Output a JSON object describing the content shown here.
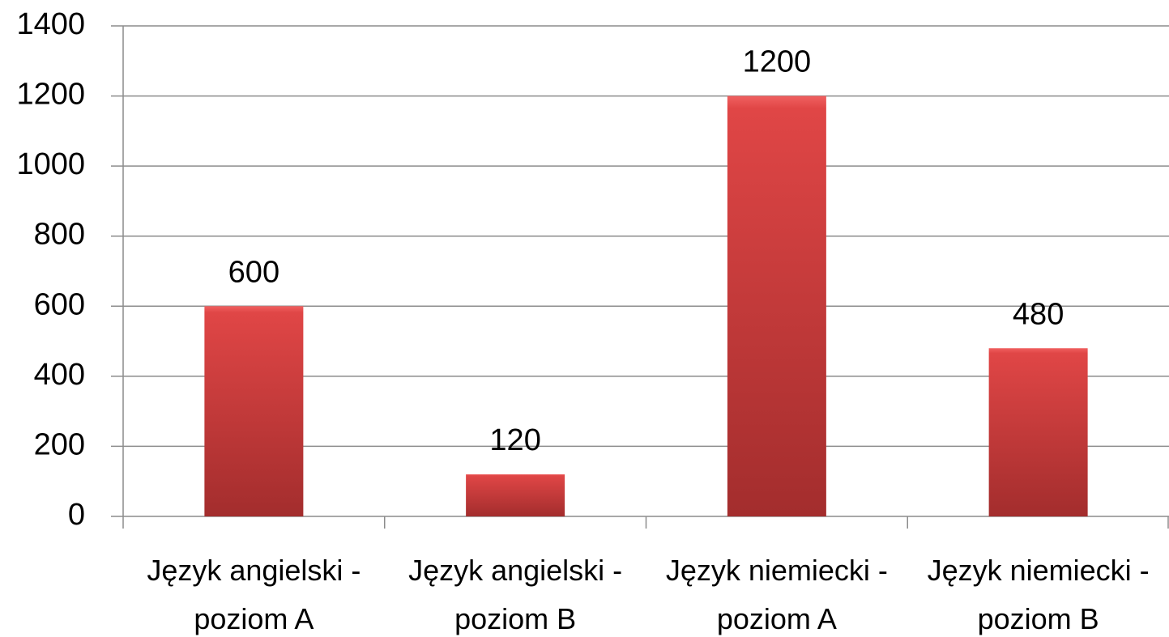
{
  "chart_data": {
    "type": "bar",
    "categories": [
      "Język angielski - poziom A",
      "Język angielski - poziom B",
      "Język niemiecki - poziom A",
      "Język niemiecki - poziom B"
    ],
    "values": [
      600,
      120,
      1200,
      480
    ],
    "color": "#d64040",
    "ylim": [
      0,
      1400
    ],
    "yticks": [
      0,
      200,
      400,
      600,
      800,
      1000,
      1200,
      1400
    ],
    "grid": true,
    "data_labels": true
  }
}
